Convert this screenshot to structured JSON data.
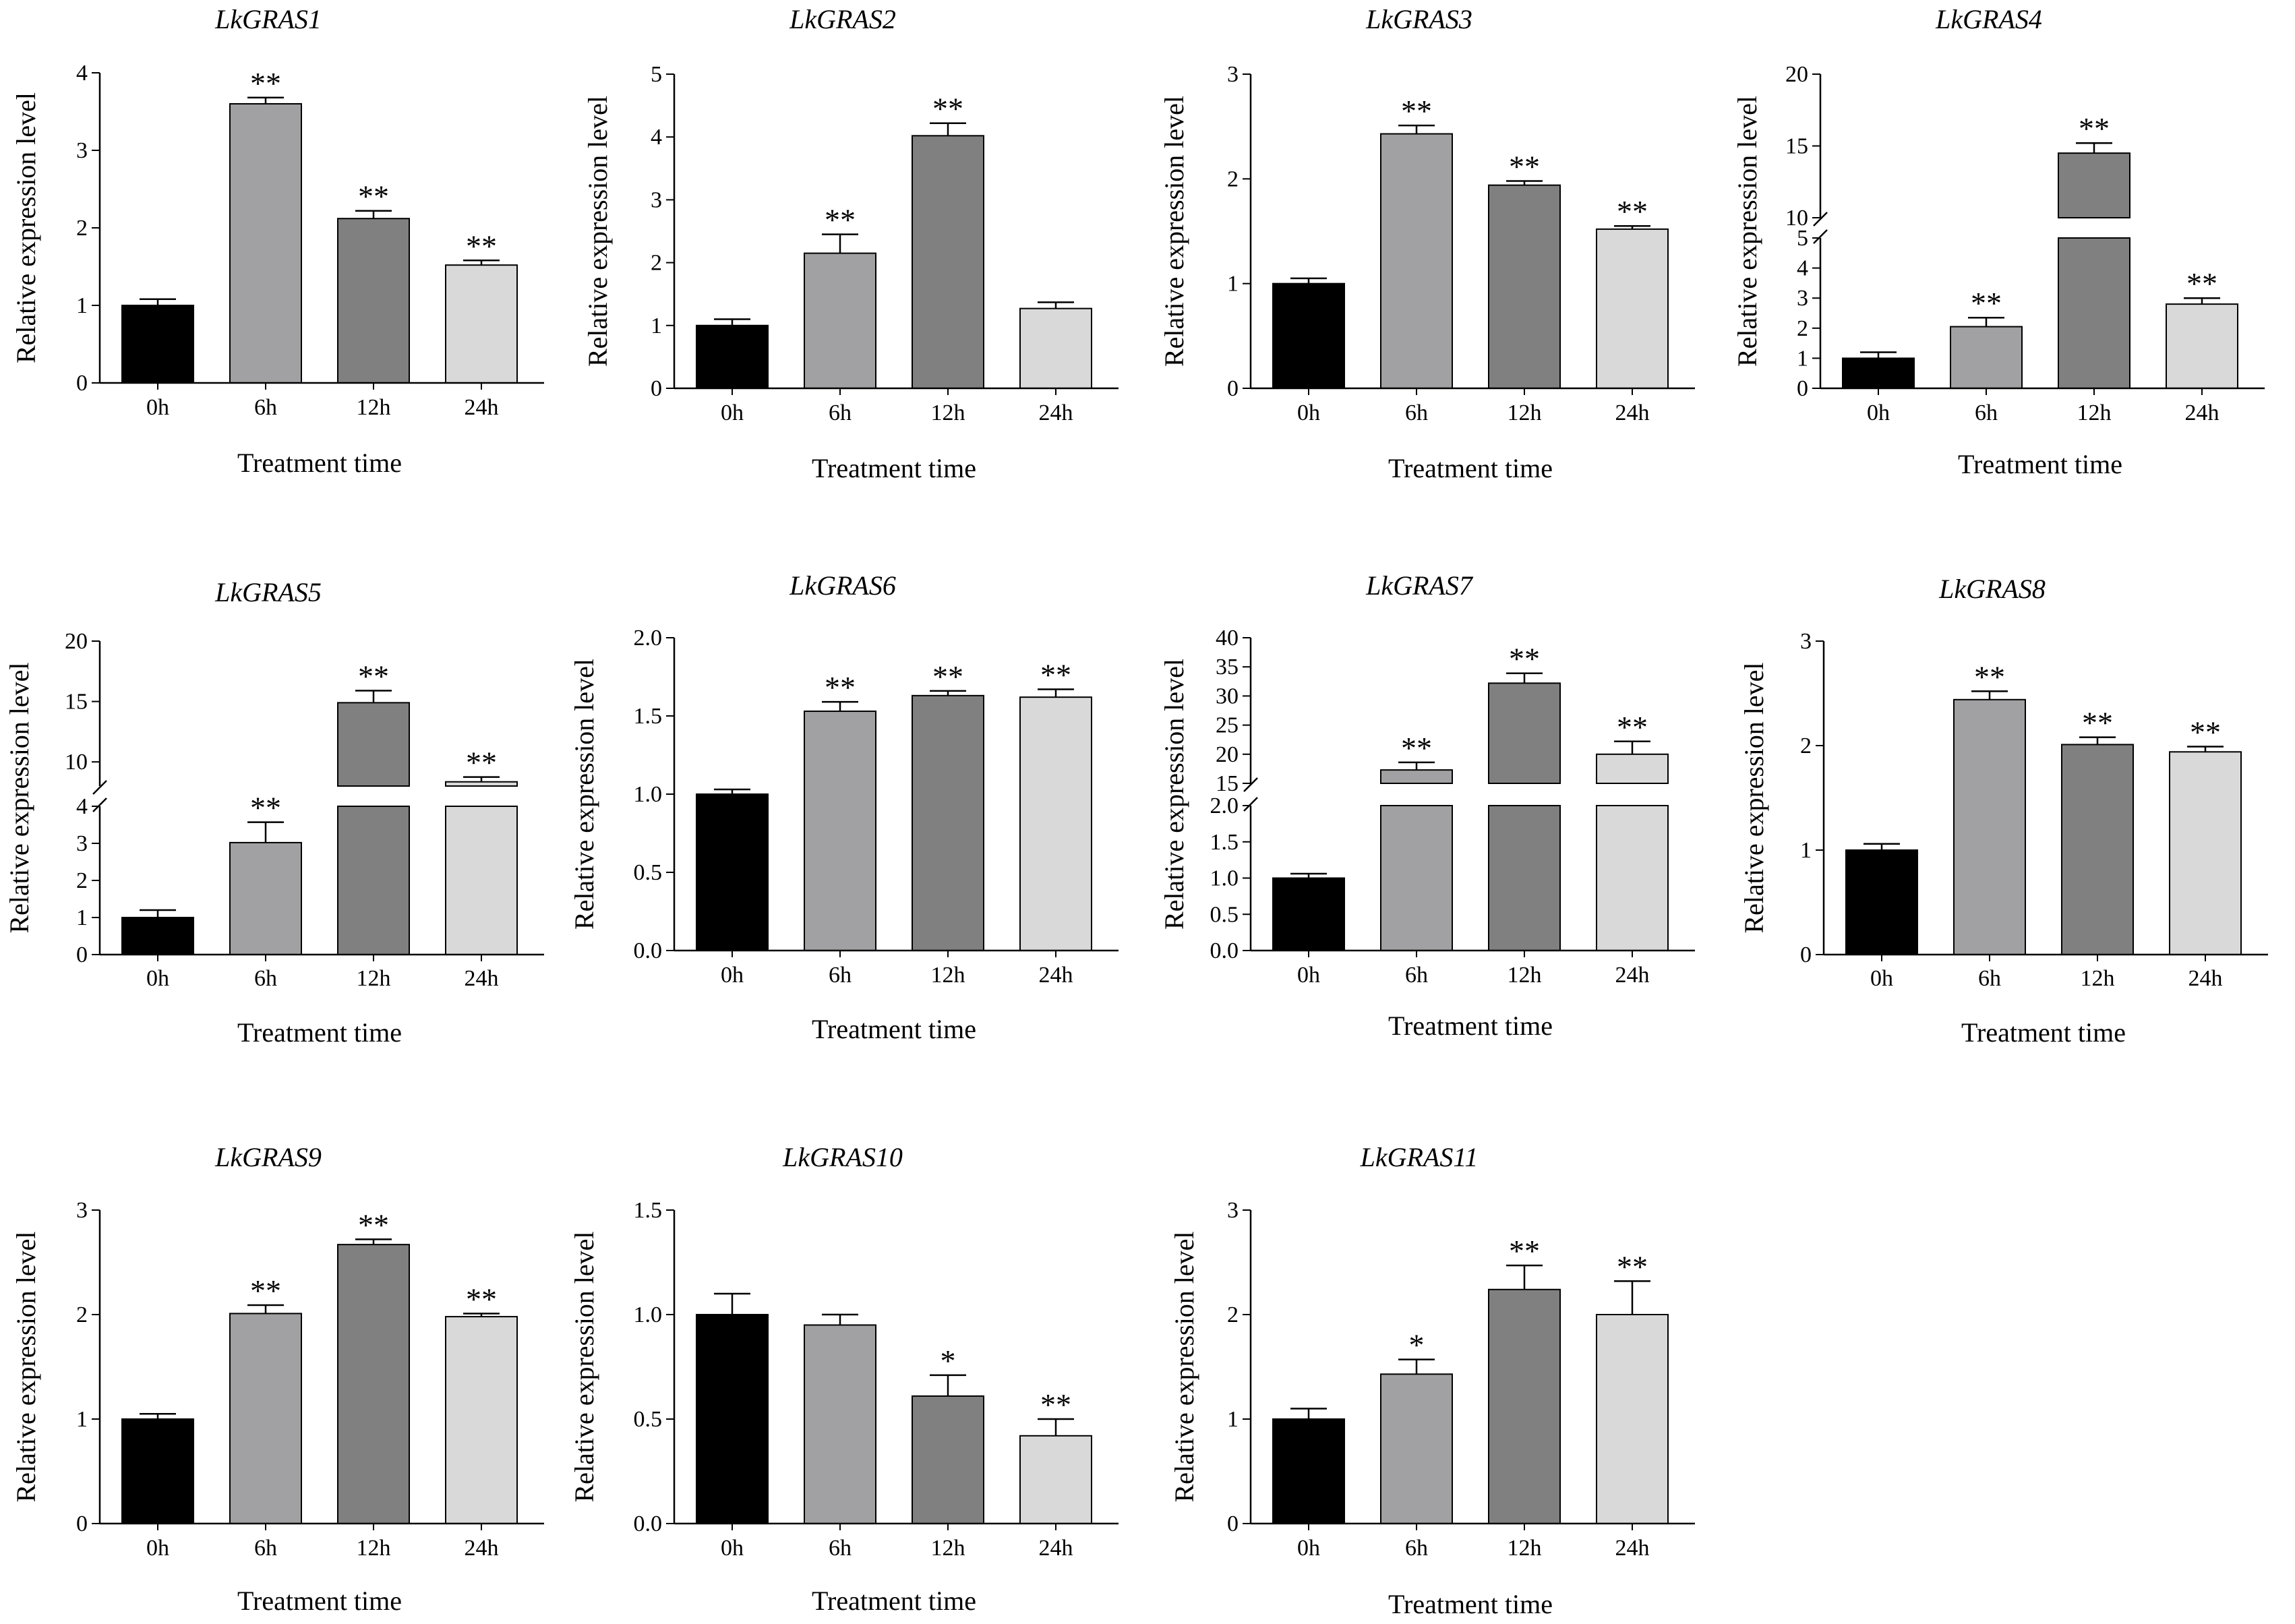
{
  "chart_data": [
    {
      "type": "bar",
      "title": "LkGRAS1",
      "categories": [
        "0h",
        "6h",
        "12h",
        "24h"
      ],
      "values": [
        1.0,
        3.6,
        2.12,
        1.52
      ],
      "errors": [
        0.08,
        0.08,
        0.1,
        0.06
      ],
      "significance": [
        "",
        "**",
        "**",
        "**"
      ],
      "xlabel": "Treatment time",
      "ylabel": "Relative expression level",
      "ylim": [
        0,
        4
      ],
      "yticks": [
        "0",
        "1",
        "2",
        "3",
        "4"
      ],
      "colors": [
        "#000000",
        "#a1a1a3",
        "#808080",
        "#d9d9d9"
      ]
    },
    {
      "type": "bar",
      "title": "LkGRAS2",
      "categories": [
        "0h",
        "6h",
        "12h",
        "24h"
      ],
      "values": [
        1.0,
        2.15,
        4.02,
        1.27
      ],
      "errors": [
        0.1,
        0.3,
        0.2,
        0.1
      ],
      "significance": [
        "",
        "**",
        "**",
        ""
      ],
      "xlabel": "Treatment time",
      "ylabel": "Relative expression level",
      "ylim": [
        0,
        5
      ],
      "yticks": [
        "0",
        "1",
        "2",
        "3",
        "4",
        "5"
      ],
      "colors": [
        "#000000",
        "#a1a1a3",
        "#808080",
        "#d9d9d9"
      ]
    },
    {
      "type": "bar",
      "title": "LkGRAS3",
      "categories": [
        "0h",
        "6h",
        "12h",
        "24h"
      ],
      "values": [
        1.0,
        2.43,
        1.94,
        1.52
      ],
      "errors": [
        0.05,
        0.08,
        0.04,
        0.03
      ],
      "significance": [
        "",
        "**",
        "**",
        "**"
      ],
      "xlabel": "Treatment time",
      "ylabel": "Relative expression level",
      "ylim": [
        0,
        3
      ],
      "yticks": [
        "0",
        "1",
        "2",
        "3"
      ],
      "colors": [
        "#000000",
        "#a1a1a3",
        "#808080",
        "#d9d9d9"
      ]
    },
    {
      "type": "bar",
      "title": "LkGRAS4",
      "categories": [
        "0h",
        "6h",
        "12h",
        "24h"
      ],
      "values": [
        1.0,
        2.05,
        14.5,
        2.8
      ],
      "errors": [
        0.2,
        0.3,
        0.7,
        0.2
      ],
      "significance": [
        "",
        "**",
        "**",
        "**"
      ],
      "xlabel": "Treatment time",
      "ylabel": "Relative expression level",
      "broken_axis": {
        "lower": [
          0,
          5
        ],
        "upper": [
          10,
          20
        ]
      },
      "yticks": [
        "0",
        "1",
        "2",
        "3",
        "4",
        "5",
        "10",
        "15",
        "20"
      ],
      "colors": [
        "#000000",
        "#a1a1a3",
        "#808080",
        "#d9d9d9"
      ]
    },
    {
      "type": "bar",
      "title": "LkGRAS5",
      "categories": [
        "0h",
        "6h",
        "12h",
        "24h"
      ],
      "values": [
        1.0,
        3.02,
        14.9,
        8.35
      ],
      "errors": [
        0.2,
        0.55,
        1.0,
        0.4
      ],
      "significance": [
        "",
        "**",
        "**",
        "**"
      ],
      "xlabel": "Treatment time",
      "ylabel": "Relative expression level",
      "broken_axis": {
        "lower": [
          0,
          4
        ],
        "upper": [
          8,
          20
        ]
      },
      "yticks": [
        "0",
        "1",
        "2",
        "3",
        "4",
        "10",
        "15",
        "20"
      ],
      "colors": [
        "#000000",
        "#a1a1a3",
        "#808080",
        "#d9d9d9"
      ]
    },
    {
      "type": "bar",
      "title": "LkGRAS6",
      "categories": [
        "0h",
        "6h",
        "12h",
        "24h"
      ],
      "values": [
        1.0,
        1.53,
        1.63,
        1.62
      ],
      "errors": [
        0.03,
        0.06,
        0.03,
        0.05
      ],
      "significance": [
        "",
        "**",
        "**",
        "**"
      ],
      "xlabel": "Treatment time",
      "ylabel": "Relative expression level",
      "ylim": [
        0,
        2
      ],
      "yticks": [
        "0.0",
        "0.5",
        "1.0",
        "1.5",
        "2.0"
      ],
      "colors": [
        "#000000",
        "#a1a1a3",
        "#808080",
        "#d9d9d9"
      ]
    },
    {
      "type": "bar",
      "title": "LkGRAS7",
      "categories": [
        "0h",
        "6h",
        "12h",
        "24h"
      ],
      "values": [
        1.0,
        17.3,
        32.2,
        20.0
      ],
      "errors": [
        0.06,
        1.3,
        1.7,
        2.2
      ],
      "significance": [
        "",
        "**",
        "**",
        "**"
      ],
      "xlabel": "Treatment time",
      "ylabel": "Relative expression level",
      "broken_axis": {
        "lower": [
          0,
          2
        ],
        "upper": [
          15,
          40
        ]
      },
      "yticks": [
        "0.0",
        "0.5",
        "1.0",
        "1.5",
        "2.0",
        "15",
        "20",
        "25",
        "30",
        "35",
        "40"
      ],
      "colors": [
        "#000000",
        "#a1a1a3",
        "#808080",
        "#d9d9d9"
      ]
    },
    {
      "type": "bar",
      "title": "LkGRAS8",
      "categories": [
        "0h",
        "6h",
        "12h",
        "24h"
      ],
      "values": [
        1.0,
        2.44,
        2.01,
        1.94
      ],
      "errors": [
        0.06,
        0.08,
        0.07,
        0.05
      ],
      "significance": [
        "",
        "**",
        "**",
        "**"
      ],
      "xlabel": "Treatment time",
      "ylabel": "Relative expression level",
      "ylim": [
        0,
        3
      ],
      "yticks": [
        "0",
        "1",
        "2",
        "3"
      ],
      "colors": [
        "#000000",
        "#a1a1a3",
        "#808080",
        "#d9d9d9"
      ]
    },
    {
      "type": "bar",
      "title": "LkGRAS9",
      "categories": [
        "0h",
        "6h",
        "12h",
        "24h"
      ],
      "values": [
        1.0,
        2.01,
        2.67,
        1.98
      ],
      "errors": [
        0.05,
        0.08,
        0.05,
        0.03
      ],
      "significance": [
        "",
        "**",
        "**",
        "**"
      ],
      "xlabel": "Treatment time",
      "ylabel": "Relative expression level",
      "ylim": [
        0,
        3
      ],
      "yticks": [
        "0",
        "1",
        "2",
        "3"
      ],
      "colors": [
        "#000000",
        "#a1a1a3",
        "#808080",
        "#d9d9d9"
      ]
    },
    {
      "type": "bar",
      "title": "LkGRAS10",
      "categories": [
        "0h",
        "6h",
        "12h",
        "24h"
      ],
      "values": [
        1.0,
        0.95,
        0.61,
        0.42
      ],
      "errors": [
        0.1,
        0.05,
        0.1,
        0.08
      ],
      "significance": [
        "",
        "",
        "*",
        "**"
      ],
      "xlabel": "Treatment time",
      "ylabel": "Relative expression level",
      "ylim": [
        0,
        1.5
      ],
      "yticks": [
        "0.0",
        "0.5",
        "1.0",
        "1.5"
      ],
      "colors": [
        "#000000",
        "#a1a1a3",
        "#808080",
        "#d9d9d9"
      ]
    },
    {
      "type": "bar",
      "title": "LkGRAS11",
      "categories": [
        "0h",
        "6h",
        "12h",
        "24h"
      ],
      "values": [
        1.0,
        1.43,
        2.24,
        2.0
      ],
      "errors": [
        0.1,
        0.14,
        0.23,
        0.32
      ],
      "significance": [
        "",
        "*",
        "**",
        "**"
      ],
      "xlabel": "Treatment time",
      "ylabel": "Relative expression level",
      "ylim": [
        0,
        3
      ],
      "yticks": [
        "0",
        "1",
        "2",
        "3"
      ],
      "colors": [
        "#000000",
        "#a1a1a3",
        "#808080",
        "#d9d9d9"
      ]
    }
  ]
}
